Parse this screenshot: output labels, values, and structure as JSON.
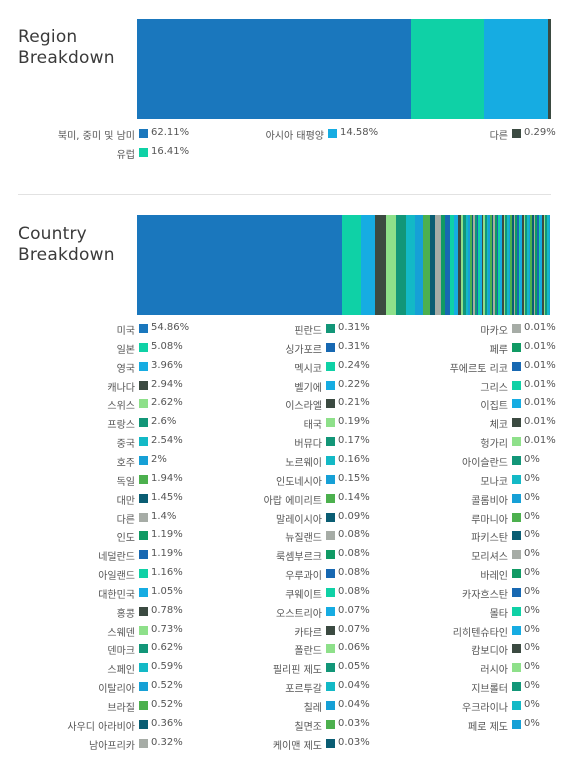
{
  "colors": {
    "blue": "#1a77bd",
    "teal": "#0fd1a6",
    "sky": "#16ace2",
    "dark": "#3b4a41",
    "lightgreen": "#8ee08a",
    "seagreen": "#129678",
    "cyan": "#13b9c6",
    "navy": "#0a5d73",
    "green": "#4cb04e",
    "gray": "#a6aca6",
    "deepblue": "#1768b2"
  },
  "region": {
    "title_line1": "Region",
    "title_line2": "Breakdown"
  },
  "country": {
    "title_line1": "Country",
    "title_line2": "Breakdown"
  },
  "chart_data": [
    {
      "type": "bar",
      "orientation": "horizontal-stacked",
      "title": "Region Breakdown",
      "series": [
        {
          "name": "북미, 중미 및 남미",
          "value": 62.11,
          "label": "62.11%",
          "color": "#1a77bd"
        },
        {
          "name": "아시아 태평양",
          "value": 14.58,
          "label": "14.58%",
          "color": "#16ace2"
        },
        {
          "name": "다른",
          "value": 0.29,
          "label": "0.29%",
          "color": "#3b4a41"
        },
        {
          "name": "유럽",
          "value": 16.41,
          "label": "16.41%",
          "color": "#0fd1a6"
        }
      ],
      "bar_order": [
        "북미, 중미 및 남미",
        "유럽",
        "아시아 태평양",
        "다른"
      ]
    },
    {
      "type": "bar",
      "orientation": "horizontal-stacked",
      "title": "Country Breakdown",
      "columns": [
        [
          {
            "name": "미국",
            "value": 54.86,
            "label": "54.86%",
            "color": "#1a77bd"
          },
          {
            "name": "일본",
            "value": 5.08,
            "label": "5.08%",
            "color": "#0fd1a6"
          },
          {
            "name": "영국",
            "value": 3.96,
            "label": "3.96%",
            "color": "#16ace2"
          },
          {
            "name": "캐나다",
            "value": 2.94,
            "label": "2.94%",
            "color": "#3b4a41"
          },
          {
            "name": "스위스",
            "value": 2.62,
            "label": "2.62%",
            "color": "#8ee08a"
          },
          {
            "name": "프랑스",
            "value": 2.6,
            "label": "2.6%",
            "color": "#129678"
          },
          {
            "name": "중국",
            "value": 2.54,
            "label": "2.54%",
            "color": "#13b9c6"
          },
          {
            "name": "호주",
            "value": 2,
            "label": "2%",
            "color": "#16a0d6"
          },
          {
            "name": "독일",
            "value": 1.94,
            "label": "1.94%",
            "color": "#4cb04e"
          },
          {
            "name": "대만",
            "value": 1.45,
            "label": "1.45%",
            "color": "#0a5d73"
          },
          {
            "name": "다른",
            "value": 1.4,
            "label": "1.4%",
            "color": "#a6aca6"
          },
          {
            "name": "인도",
            "value": 1.19,
            "label": "1.19%",
            "color": "#109a64"
          },
          {
            "name": "네덜란드",
            "value": 1.19,
            "label": "1.19%",
            "color": "#1768b2"
          },
          {
            "name": "아일랜드",
            "value": 1.16,
            "label": "1.16%",
            "color": "#0fd1a6"
          },
          {
            "name": "대한민국",
            "value": 1.05,
            "label": "1.05%",
            "color": "#16ace2"
          },
          {
            "name": "홍콩",
            "value": 0.78,
            "label": "0.78%",
            "color": "#3b4a41"
          },
          {
            "name": "스웨덴",
            "value": 0.73,
            "label": "0.73%",
            "color": "#8ee08a"
          },
          {
            "name": "덴마크",
            "value": 0.62,
            "label": "0.62%",
            "color": "#129678"
          },
          {
            "name": "스페인",
            "value": 0.59,
            "label": "0.59%",
            "color": "#13b9c6"
          },
          {
            "name": "이탈리아",
            "value": 0.52,
            "label": "0.52%",
            "color": "#16a0d6"
          },
          {
            "name": "브라질",
            "value": 0.52,
            "label": "0.52%",
            "color": "#4cb04e"
          },
          {
            "name": "사우디 아라비아",
            "value": 0.36,
            "label": "0.36%",
            "color": "#0a5d73"
          },
          {
            "name": "남아프리카",
            "value": 0.32,
            "label": "0.32%",
            "color": "#a6aca6"
          }
        ],
        [
          {
            "name": "핀란드",
            "value": 0.31,
            "label": "0.31%",
            "color": "#129678"
          },
          {
            "name": "싱가포르",
            "value": 0.31,
            "label": "0.31%",
            "color": "#1768b2"
          },
          {
            "name": "멕시코",
            "value": 0.24,
            "label": "0.24%",
            "color": "#0fd1a6"
          },
          {
            "name": "벨기에",
            "value": 0.22,
            "label": "0.22%",
            "color": "#16ace2"
          },
          {
            "name": "이스라엘",
            "value": 0.21,
            "label": "0.21%",
            "color": "#3b4a41"
          },
          {
            "name": "태국",
            "value": 0.19,
            "label": "0.19%",
            "color": "#8ee08a"
          },
          {
            "name": "버뮤다",
            "value": 0.17,
            "label": "0.17%",
            "color": "#129678"
          },
          {
            "name": "노르웨이",
            "value": 0.16,
            "label": "0.16%",
            "color": "#13b9c6"
          },
          {
            "name": "인도네시아",
            "value": 0.15,
            "label": "0.15%",
            "color": "#16a0d6"
          },
          {
            "name": "아랍 에미리트",
            "value": 0.14,
            "label": "0.14%",
            "color": "#4cb04e"
          },
          {
            "name": "말레이시아",
            "value": 0.09,
            "label": "0.09%",
            "color": "#0a5d73"
          },
          {
            "name": "뉴질랜드",
            "value": 0.08,
            "label": "0.08%",
            "color": "#a6aca6"
          },
          {
            "name": "룩셈부르크",
            "value": 0.08,
            "label": "0.08%",
            "color": "#109a64"
          },
          {
            "name": "우루과이",
            "value": 0.08,
            "label": "0.08%",
            "color": "#1768b2"
          },
          {
            "name": "쿠웨이트",
            "value": 0.08,
            "label": "0.08%",
            "color": "#0fd1a6"
          },
          {
            "name": "오스트리아",
            "value": 0.07,
            "label": "0.07%",
            "color": "#16ace2"
          },
          {
            "name": "카타르",
            "value": 0.07,
            "label": "0.07%",
            "color": "#3b4a41"
          },
          {
            "name": "폴란드",
            "value": 0.06,
            "label": "0.06%",
            "color": "#8ee08a"
          },
          {
            "name": "필리핀 제도",
            "value": 0.05,
            "label": "0.05%",
            "color": "#129678"
          },
          {
            "name": "포르투갈",
            "value": 0.04,
            "label": "0.04%",
            "color": "#13b9c6"
          },
          {
            "name": "칠레",
            "value": 0.04,
            "label": "0.04%",
            "color": "#16a0d6"
          },
          {
            "name": "칠면조",
            "value": 0.03,
            "label": "0.03%",
            "color": "#4cb04e"
          },
          {
            "name": "케이맨 제도",
            "value": 0.03,
            "label": "0.03%",
            "color": "#0a5d73"
          }
        ],
        [
          {
            "name": "마카오",
            "value": 0.01,
            "label": "0.01%",
            "color": "#a6aca6"
          },
          {
            "name": "페루",
            "value": 0.01,
            "label": "0.01%",
            "color": "#109a64"
          },
          {
            "name": "푸에르토 리코",
            "value": 0.01,
            "label": "0.01%",
            "color": "#1768b2"
          },
          {
            "name": "그리스",
            "value": 0.01,
            "label": "0.01%",
            "color": "#0fd1a6"
          },
          {
            "name": "이집트",
            "value": 0.01,
            "label": "0.01%",
            "color": "#16ace2"
          },
          {
            "name": "체코",
            "value": 0.01,
            "label": "0.01%",
            "color": "#3b4a41"
          },
          {
            "name": "헝가리",
            "value": 0.01,
            "label": "0.01%",
            "color": "#8ee08a"
          },
          {
            "name": "아이슬란드",
            "value": 0,
            "label": "0%",
            "color": "#129678"
          },
          {
            "name": "모나코",
            "value": 0,
            "label": "0%",
            "color": "#13b9c6"
          },
          {
            "name": "콜롬비아",
            "value": 0,
            "label": "0%",
            "color": "#16a0d6"
          },
          {
            "name": "루마니아",
            "value": 0,
            "label": "0%",
            "color": "#4cb04e"
          },
          {
            "name": "파키스탄",
            "value": 0,
            "label": "0%",
            "color": "#0a5d73"
          },
          {
            "name": "모리셔스",
            "value": 0,
            "label": "0%",
            "color": "#a6aca6"
          },
          {
            "name": "바레인",
            "value": 0,
            "label": "0%",
            "color": "#109a64"
          },
          {
            "name": "카자흐스탄",
            "value": 0,
            "label": "0%",
            "color": "#1768b2"
          },
          {
            "name": "몰타",
            "value": 0,
            "label": "0%",
            "color": "#0fd1a6"
          },
          {
            "name": "리히텐슈타인",
            "value": 0,
            "label": "0%",
            "color": "#16ace2"
          },
          {
            "name": "캄보디아",
            "value": 0,
            "label": "0%",
            "color": "#3b4a41"
          },
          {
            "name": "러시아",
            "value": 0,
            "label": "0%",
            "color": "#8ee08a"
          },
          {
            "name": "지브롤터",
            "value": 0,
            "label": "0%",
            "color": "#129678"
          },
          {
            "name": "우크라이나",
            "value": 0,
            "label": "0%",
            "color": "#13b9c6"
          },
          {
            "name": "페로 제도",
            "value": 0,
            "label": "0%",
            "color": "#16a0d6"
          }
        ]
      ]
    }
  ]
}
